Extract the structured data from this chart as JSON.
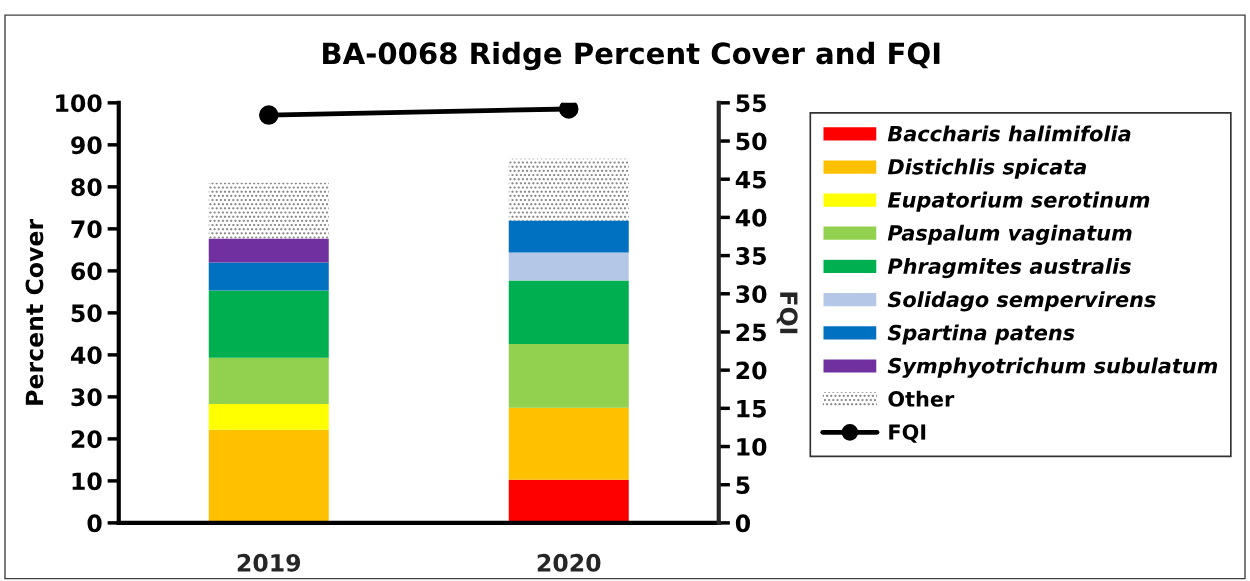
{
  "chart_data": {
    "type": "bar",
    "stacked": true,
    "title": "BA-0068 Ridge Percent Cover and FQI",
    "ylabel": "Percent Cover",
    "y2label": "FQI",
    "categories": [
      "2019",
      "2020"
    ],
    "series": [
      {
        "name": "Baccharis halimifolia",
        "color": "#ff0000",
        "values": [
          0,
          10.3
        ]
      },
      {
        "name": "Distichlis spicata",
        "color": "#ffc000",
        "values": [
          22.2,
          17.1
        ]
      },
      {
        "name": "Eupatorium serotinum",
        "color": "#ffff00",
        "values": [
          6.1,
          0
        ]
      },
      {
        "name": "Paspalum vaginatum",
        "color": "#92d050",
        "values": [
          11.0,
          15.2
        ]
      },
      {
        "name": "Phragmites australis",
        "color": "#00b050",
        "values": [
          16.0,
          15.1
        ]
      },
      {
        "name": "Solidago sempervirens",
        "color": "#b4c7e7",
        "values": [
          0,
          6.7
        ]
      },
      {
        "name": "Spartina patens",
        "color": "#0070c0",
        "values": [
          6.7,
          7.6
        ]
      },
      {
        "name": "Symphyotrichum subulatum",
        "color": "#7030a0",
        "values": [
          5.7,
          0
        ]
      },
      {
        "name": "Other",
        "color": "#7f7f7f",
        "values": [
          13.3,
          14.7
        ]
      },
      {
        "name": "FQI",
        "type": "line",
        "axis": "y2",
        "color": "#000000",
        "marker": "circle",
        "values": [
          53.4,
          54.2
        ]
      }
    ],
    "ylim": [
      0,
      100
    ],
    "yticks": [
      0,
      10,
      20,
      30,
      40,
      50,
      60,
      70,
      80,
      90,
      100
    ],
    "y2lim": [
      0,
      55
    ],
    "y2ticks": [
      0,
      5,
      10,
      15,
      20,
      25,
      30,
      35,
      40,
      45,
      50,
      55
    ],
    "legend": "right",
    "grid": false
  }
}
